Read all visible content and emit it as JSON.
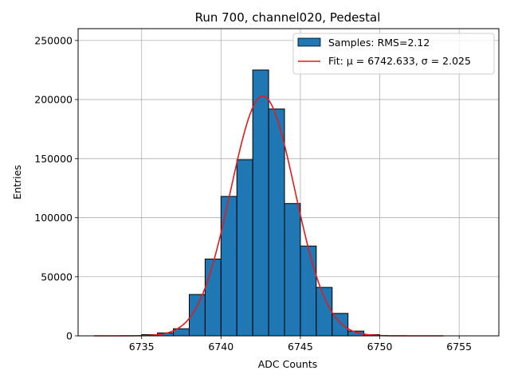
{
  "chart_data": {
    "type": "bar",
    "title": "Run 700, channel020, Pedestal",
    "xlabel": "ADC Counts",
    "ylabel": "Entries",
    "xlim": [
      6731,
      6757.5
    ],
    "ylim": [
      0,
      260000
    ],
    "xticks": [
      6735,
      6740,
      6745,
      6750,
      6755
    ],
    "yticks": [
      0,
      50000,
      100000,
      150000,
      200000,
      250000
    ],
    "grid": true,
    "legend_position": "top-right",
    "bin_width": 1,
    "histogram": {
      "name": "Samples: RMS=2.12",
      "color": "#1f77b4",
      "bins": [
        {
          "x0": 6735,
          "value": 1000
        },
        {
          "x0": 6736,
          "value": 2500
        },
        {
          "x0": 6737,
          "value": 6000
        },
        {
          "x0": 6738,
          "value": 35000
        },
        {
          "x0": 6739,
          "value": 65000
        },
        {
          "x0": 6740,
          "value": 118000
        },
        {
          "x0": 6741,
          "value": 149000
        },
        {
          "x0": 6742,
          "value": 225000
        },
        {
          "x0": 6743,
          "value": 192000
        },
        {
          "x0": 6744,
          "value": 112000
        },
        {
          "x0": 6745,
          "value": 76000
        },
        {
          "x0": 6746,
          "value": 41000
        },
        {
          "x0": 6747,
          "value": 19000
        },
        {
          "x0": 6748,
          "value": 4000
        },
        {
          "x0": 6749,
          "value": 1000
        }
      ]
    },
    "fit": {
      "name": "Fit: μ = 6742.633, σ = 2.025",
      "color": "#e41a1c",
      "mu": 6742.633,
      "sigma": 2.025,
      "amplitude": 203000,
      "x_range": [
        6732,
        6754
      ]
    }
  }
}
